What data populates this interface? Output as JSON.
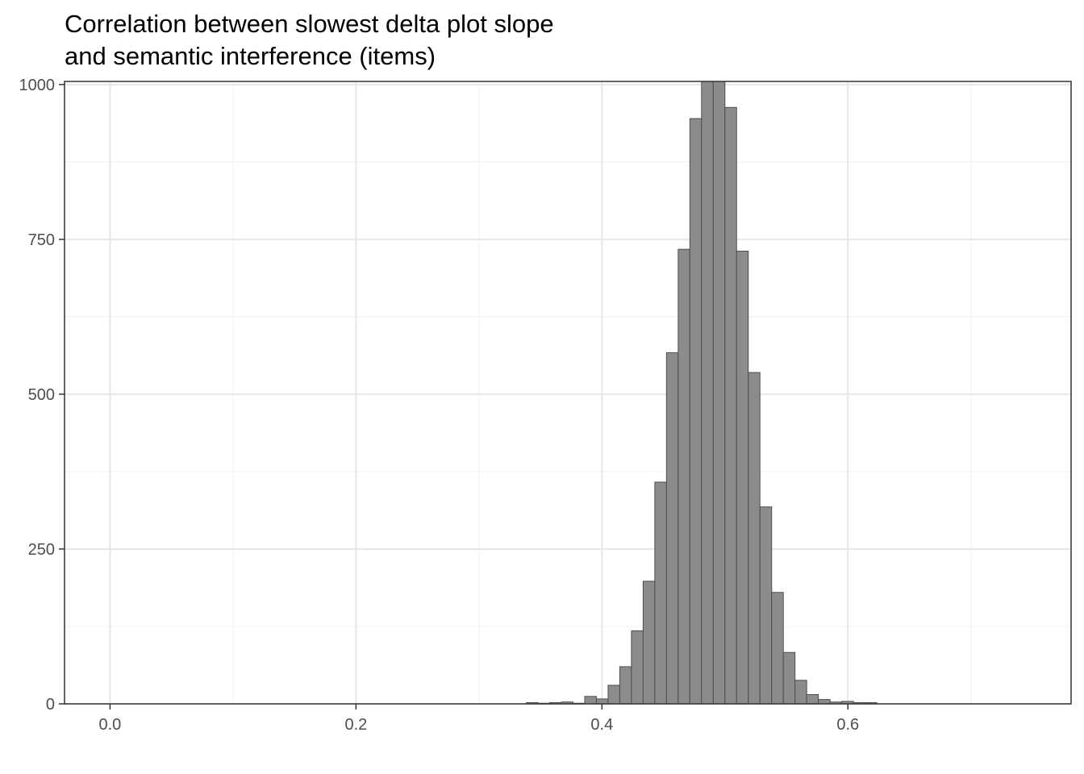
{
  "chart_data": {
    "type": "bar",
    "title": [
      "Correlation between slowest delta plot slope",
      "and semantic interference (items)"
    ],
    "xlabel": "",
    "ylabel": "",
    "xlim": [
      -0.037,
      0.7815
    ],
    "ylim": [
      0,
      1005
    ],
    "x_ticks": [
      0.0,
      0.2,
      0.4,
      0.6
    ],
    "x_tick_labels": [
      "0.0",
      "0.2",
      "0.4",
      "0.6"
    ],
    "y_ticks": [
      0,
      250,
      500,
      750,
      1000
    ],
    "y_tick_labels": [
      "0",
      "250",
      "500",
      "750",
      "1000"
    ],
    "grid": true,
    "bin_width": 0.0095,
    "bin_starts": [
      0.3385,
      0.348,
      0.3575,
      0.367,
      0.3765,
      0.386,
      0.3955,
      0.405,
      0.4145,
      0.424,
      0.4335,
      0.443,
      0.4525,
      0.462,
      0.4715,
      0.481,
      0.4905,
      0.5,
      0.5095,
      0.519,
      0.5285,
      0.538,
      0.5475,
      0.557,
      0.5665,
      0.576,
      0.5855,
      0.595,
      0.6045,
      0.614
    ],
    "values": [
      2,
      1,
      2,
      3,
      1,
      12,
      8,
      30,
      60,
      118,
      198,
      358,
      567,
      734,
      945,
      1005,
      1005,
      963,
      731,
      535,
      318,
      180,
      83,
      38,
      15,
      7,
      3,
      4,
      2,
      2
    ],
    "colors": {
      "fill": "#8c8c8c",
      "outline": "#4d4d4d",
      "grid_major": "#e6e6e6",
      "grid_minor": "#f2f2f2",
      "axis": "#333333"
    }
  }
}
